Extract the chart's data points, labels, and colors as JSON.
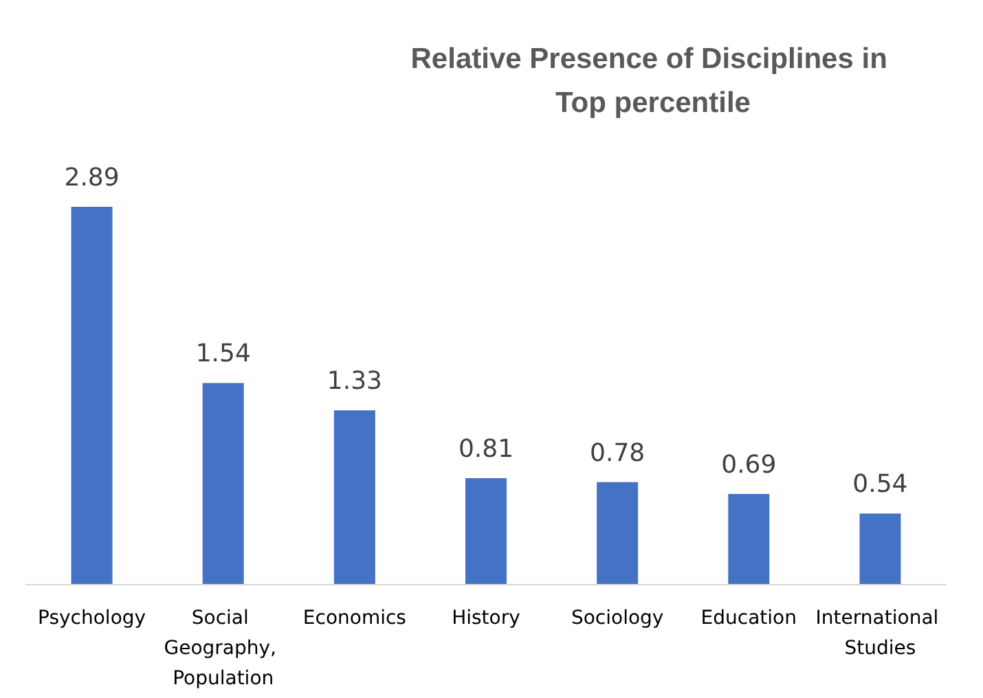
{
  "chart_data": {
    "type": "bar",
    "title": "Relative Presence of Disciplines in Top percentile",
    "categories": [
      "Psychology",
      "Social Geography, Population",
      "Economics",
      "History",
      "Sociology",
      "Education",
      "International Studies"
    ],
    "values": [
      2.89,
      1.54,
      1.33,
      0.81,
      0.78,
      0.69,
      0.54
    ],
    "color": "#4472c4",
    "data_labels": true
  }
}
